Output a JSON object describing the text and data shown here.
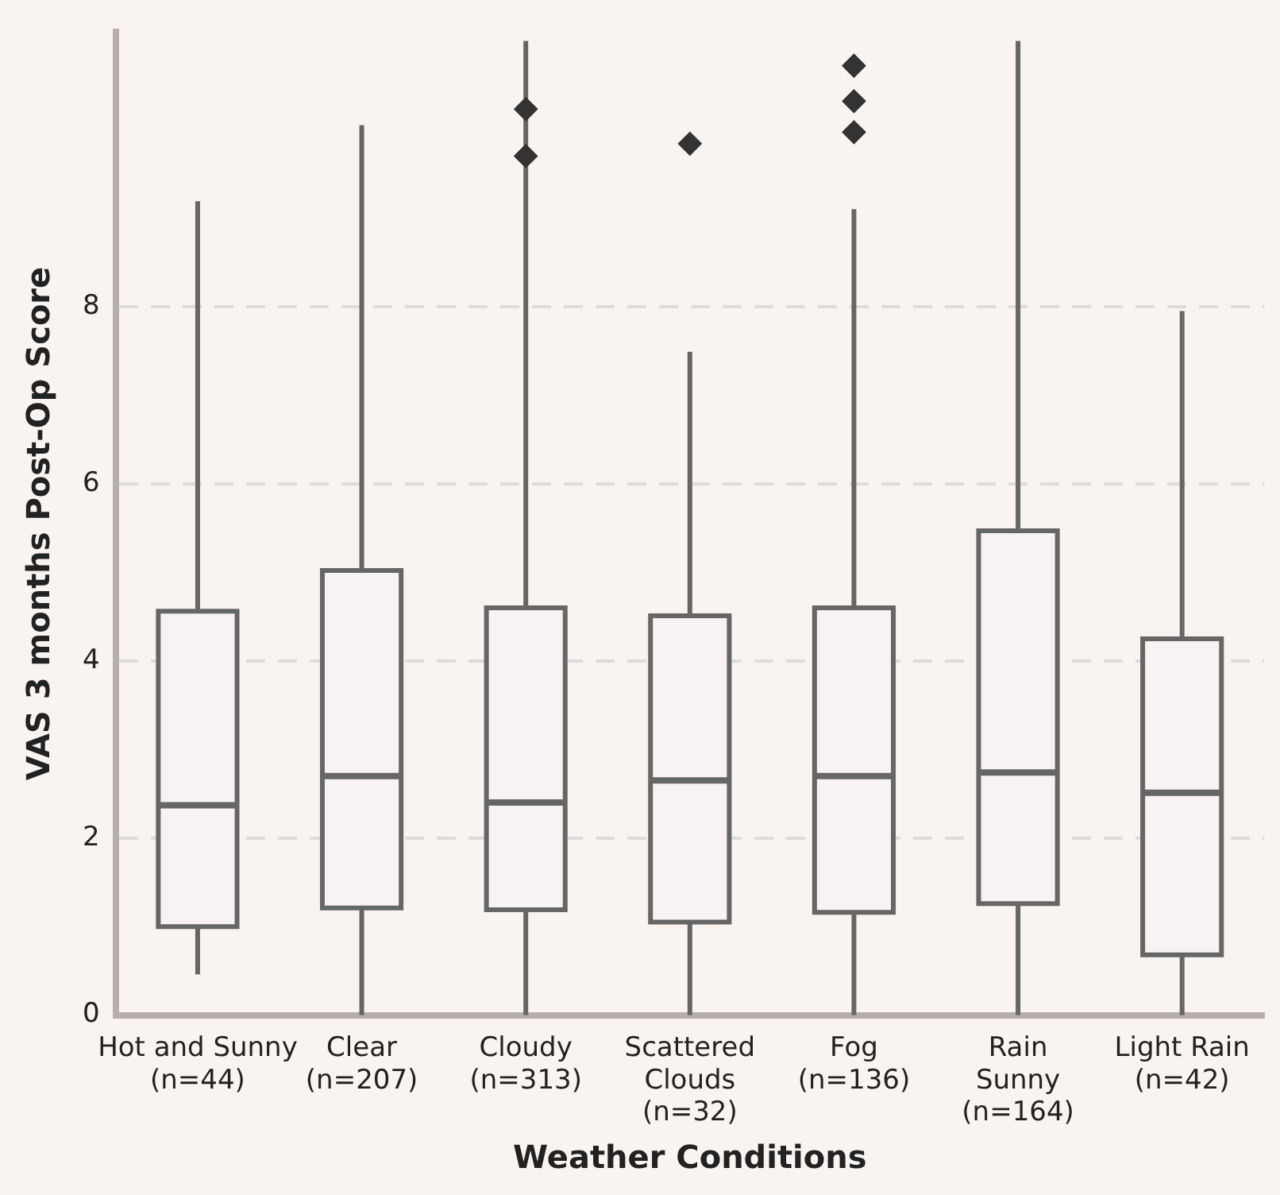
{
  "chart_data": {
    "type": "box",
    "xlabel": "Weather Conditions",
    "ylabel": "VAS 3 months Post-Op Score",
    "categories": [
      "Hot and Sunny\n(n=44)",
      "Clear\n(n=207)",
      "Cloudy\n(n=313)",
      "Scattered\nClouds\n(n=32)",
      "Fog\n(n=136)",
      "Rain\nSunny\n(n=164)",
      "Light Rain\n(n=42)"
    ],
    "boxes": [
      {
        "low": 0.46,
        "q1": 1.0,
        "median": 2.37,
        "q3": 4.56,
        "high": 9.19
      },
      {
        "low": 0,
        "q1": 1.21,
        "median": 2.7,
        "q3": 5.02,
        "high": 10.05
      },
      {
        "low": 0,
        "q1": 1.19,
        "median": 2.4,
        "q3": 4.6,
        "high": 11.0,
        "outliers": [
          10.23,
          9.7
        ]
      },
      {
        "low": 0,
        "q1": 1.05,
        "median": 2.65,
        "q3": 4.51,
        "high": 7.49,
        "outliers": [
          9.84
        ]
      },
      {
        "low": 0,
        "q1": 1.16,
        "median": 2.7,
        "q3": 4.6,
        "high": 9.1,
        "outliers": [
          10.72,
          10.32,
          9.97
        ]
      },
      {
        "low": 0,
        "q1": 1.26,
        "median": 2.74,
        "q3": 5.47,
        "high": 11.0
      },
      {
        "low": 0,
        "q1": 0.68,
        "median": 2.51,
        "q3": 4.25,
        "high": 7.95
      }
    ],
    "color": "#f8f2f2",
    "marker": "diamond",
    "ylim": [
      0,
      11.1
    ],
    "yticks": [
      0,
      2,
      4,
      6,
      8
    ],
    "grid": "y",
    "legend": false
  }
}
